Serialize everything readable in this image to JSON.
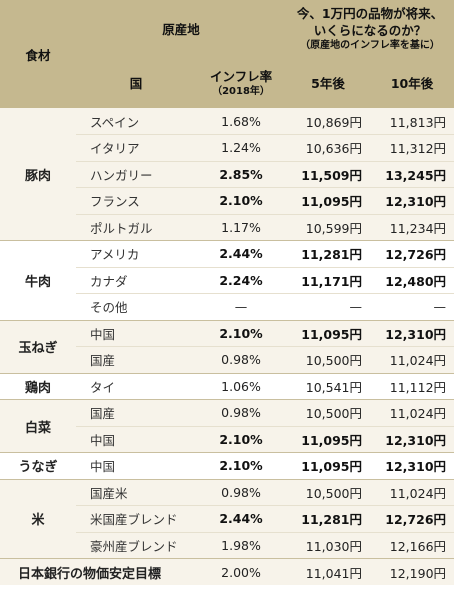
{
  "header": {
    "food": "食材",
    "origin": "原産地",
    "country": "国",
    "rate": "インフレ率",
    "rate_sub": "（2018年）",
    "future_line1": "今、1万円の品物が将来、",
    "future_line2": "いくらになるのか？",
    "future_sub": "（原産地のインフレ率を基に）",
    "y5": "5年後",
    "y10": "10年後"
  },
  "groups": [
    {
      "food": "豚肉",
      "rows": [
        {
          "country": "スペイン",
          "rate": "1.68%",
          "y5": "10,869円",
          "y10": "11,813円",
          "bold": false
        },
        {
          "country": "イタリア",
          "rate": "1.24%",
          "y5": "10,636円",
          "y10": "11,312円",
          "bold": false
        },
        {
          "country": "ハンガリー",
          "rate": "2.85%",
          "y5": "11,509円",
          "y10": "13,245円",
          "bold": true
        },
        {
          "country": "フランス",
          "rate": "2.10%",
          "y5": "11,095円",
          "y10": "12,310円",
          "bold": true
        },
        {
          "country": "ポルトガル",
          "rate": "1.17%",
          "y5": "10,599円",
          "y10": "11,234円",
          "bold": false
        }
      ]
    },
    {
      "food": "牛肉",
      "rows": [
        {
          "country": "アメリカ",
          "rate": "2.44%",
          "y5": "11,281円",
          "y10": "12,726円",
          "bold": true
        },
        {
          "country": "カナダ",
          "rate": "2.24%",
          "y5": "11,171円",
          "y10": "12,480円",
          "bold": true
        },
        {
          "country": "その他",
          "rate": "—",
          "y5": "—",
          "y10": "—",
          "bold": false
        }
      ]
    },
    {
      "food": "玉ねぎ",
      "rows": [
        {
          "country": "中国",
          "rate": "2.10%",
          "y5": "11,095円",
          "y10": "12,310円",
          "bold": true
        },
        {
          "country": "国産",
          "rate": "0.98%",
          "y5": "10,500円",
          "y10": "11,024円",
          "bold": false
        }
      ]
    },
    {
      "food": "鶏肉",
      "rows": [
        {
          "country": "タイ",
          "rate": "1.06%",
          "y5": "10,541円",
          "y10": "11,112円",
          "bold": false
        }
      ]
    },
    {
      "food": "白菜",
      "rows": [
        {
          "country": "国産",
          "rate": "0.98%",
          "y5": "10,500円",
          "y10": "11,024円",
          "bold": false
        },
        {
          "country": "中国",
          "rate": "2.10%",
          "y5": "11,095円",
          "y10": "12,310円",
          "bold": true
        }
      ]
    },
    {
      "food": "うなぎ",
      "rows": [
        {
          "country": "中国",
          "rate": "2.10%",
          "y5": "11,095円",
          "y10": "12,310円",
          "bold": true
        }
      ]
    },
    {
      "food": "米",
      "rows": [
        {
          "country": "国産米",
          "rate": "0.98%",
          "y5": "10,500円",
          "y10": "11,024円",
          "bold": false
        },
        {
          "country": "米国産ブレンド",
          "rate": "2.44%",
          "y5": "11,281円",
          "y10": "12,726円",
          "bold": true
        },
        {
          "country": "豪州産ブレンド",
          "rate": "1.98%",
          "y5": "11,030円",
          "y10": "12,166円",
          "bold": false
        }
      ]
    }
  ],
  "boj": {
    "label": "日本銀行の物価安定目標",
    "rate": "2.00%",
    "y5": "11,041円",
    "y10": "12,190円"
  }
}
